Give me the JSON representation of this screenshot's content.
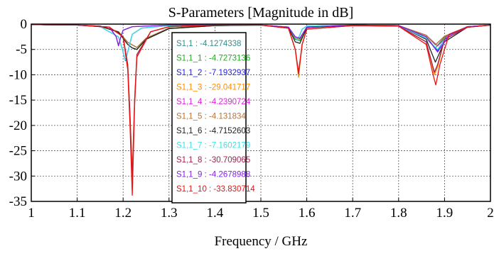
{
  "chart_data": {
    "type": "line",
    "title": "S-Parameters [Magnitude in dB]",
    "xlabel": "Frequency / GHz",
    "ylabel": "",
    "xlim": [
      1,
      2
    ],
    "ylim": [
      -35,
      0
    ],
    "xticks": [
      "1",
      "1.1",
      "1.2",
      "1.3",
      "1.4",
      "1.5",
      "1.6",
      "1.7",
      "1.8",
      "1.9",
      "2"
    ],
    "yticks": [
      "0",
      "-5",
      "-10",
      "-15",
      "-20",
      "-25",
      "-30",
      "-35"
    ],
    "grid": true,
    "legend_position": "top-center",
    "series": [
      {
        "name": "S1,1",
        "label": "S1,1 : -4.1274338",
        "color": "#3a8a8a",
        "x": [
          1.0,
          1.1,
          1.15,
          1.19,
          1.21,
          1.22,
          1.23,
          1.25,
          1.3,
          1.4,
          1.5,
          1.56,
          1.575,
          1.585,
          1.6,
          1.7,
          1.8,
          1.86,
          1.88,
          1.9,
          1.95,
          2.0
        ],
        "y": [
          -0.1,
          -0.2,
          -0.4,
          -1.5,
          -3.6,
          -4.1,
          -4.6,
          -2.8,
          -0.8,
          -0.3,
          -0.2,
          -0.6,
          -2.8,
          -3.0,
          -0.6,
          -0.2,
          -0.3,
          -2.2,
          -4.1,
          -2.4,
          -0.5,
          -0.2
        ]
      },
      {
        "name": "S1,1_1",
        "label": "S1,1_1 : -4.7273136",
        "color": "#22aa22",
        "x": [
          1.0,
          1.1,
          1.15,
          1.19,
          1.21,
          1.22,
          1.23,
          1.25,
          1.3,
          1.4,
          1.5,
          1.56,
          1.575,
          1.585,
          1.6,
          1.7,
          1.8,
          1.86,
          1.88,
          1.9,
          1.95,
          2.0
        ],
        "y": [
          -0.1,
          -0.2,
          -0.4,
          -1.6,
          -4.0,
          -4.7,
          -5.0,
          -3.0,
          -0.9,
          -0.3,
          -0.2,
          -0.6,
          -3.0,
          -3.3,
          -0.6,
          -0.2,
          -0.3,
          -2.5,
          -4.7,
          -2.6,
          -0.5,
          -0.2
        ]
      },
      {
        "name": "S1,1_2",
        "label": "S1,1_2 : -7.1932937",
        "color": "#2222dd",
        "x": [
          1.0,
          1.1,
          1.15,
          1.19,
          1.2,
          1.205,
          1.21,
          1.22,
          1.24,
          1.3,
          1.4,
          1.5,
          1.56,
          1.575,
          1.58,
          1.59,
          1.6,
          1.7,
          1.8,
          1.86,
          1.885,
          1.9,
          1.95,
          2.0
        ],
        "y": [
          -0.1,
          -0.2,
          -0.5,
          -2.5,
          -5.5,
          -7.2,
          -5.5,
          -2.0,
          -0.8,
          -0.3,
          -0.2,
          -0.2,
          -0.6,
          -2.6,
          -3.2,
          -1.0,
          -0.4,
          -0.2,
          -0.3,
          -2.8,
          -5.2,
          -3.0,
          -0.6,
          -0.2
        ]
      },
      {
        "name": "S1,1_3",
        "label": "S1,1_3 : -29.041717",
        "color": "#ff8c00",
        "x": [
          1.0,
          1.1,
          1.17,
          1.2,
          1.21,
          1.215,
          1.22,
          1.225,
          1.23,
          1.26,
          1.3,
          1.4,
          1.5,
          1.56,
          1.575,
          1.582,
          1.59,
          1.6,
          1.7,
          1.8,
          1.86,
          1.878,
          1.885,
          1.9,
          1.95,
          2.0
        ],
        "y": [
          -0.1,
          -0.2,
          -0.6,
          -2.5,
          -8.0,
          -18.0,
          -29.0,
          -15.0,
          -6.0,
          -1.5,
          -0.5,
          -0.2,
          -0.2,
          -0.8,
          -5.0,
          -10.5,
          -4.0,
          -1.0,
          -0.3,
          -0.4,
          -3.5,
          -10.0,
          -8.5,
          -3.0,
          -0.6,
          -0.2
        ]
      },
      {
        "name": "S1,1_4",
        "label": "S1,1_4 : -4.2390724",
        "color": "#e020e0",
        "x": [
          1.0,
          1.1,
          1.17,
          1.185,
          1.19,
          1.195,
          1.2,
          1.22,
          1.3,
          1.4,
          1.5,
          1.56,
          1.575,
          1.585,
          1.6,
          1.7,
          1.8,
          1.86,
          1.885,
          1.91,
          1.95,
          2.0
        ],
        "y": [
          -0.1,
          -0.2,
          -0.6,
          -2.5,
          -4.2,
          -2.5,
          -1.2,
          -0.5,
          -0.2,
          -0.2,
          -0.2,
          -0.6,
          -2.5,
          -2.8,
          -0.6,
          -0.2,
          -0.3,
          -2.2,
          -4.3,
          -2.0,
          -0.5,
          -0.2
        ]
      },
      {
        "name": "S1,1_5",
        "label": "S1,1_5 : -4.131834",
        "color": "#b87333",
        "x": [
          1.0,
          1.1,
          1.15,
          1.19,
          1.21,
          1.22,
          1.23,
          1.25,
          1.3,
          1.4,
          1.5,
          1.56,
          1.575,
          1.585,
          1.6,
          1.7,
          1.8,
          1.86,
          1.88,
          1.9,
          1.95,
          2.0
        ],
        "y": [
          -0.1,
          -0.2,
          -0.4,
          -1.5,
          -3.6,
          -4.1,
          -4.6,
          -2.8,
          -0.8,
          -0.3,
          -0.2,
          -0.6,
          -2.8,
          -3.0,
          -0.6,
          -0.2,
          -0.3,
          -2.2,
          -4.1,
          -2.4,
          -0.5,
          -0.2
        ]
      },
      {
        "name": "S1,1_6",
        "label": "S1,1_6 : -4.7152603",
        "color": "#222222",
        "x": [
          1.0,
          1.1,
          1.15,
          1.19,
          1.21,
          1.22,
          1.23,
          1.25,
          1.3,
          1.4,
          1.5,
          1.56,
          1.575,
          1.585,
          1.6,
          1.7,
          1.8,
          1.86,
          1.88,
          1.9,
          1.95,
          2.0
        ],
        "y": [
          -0.1,
          -0.2,
          -0.4,
          -1.6,
          -4.0,
          -4.7,
          -5.0,
          -3.0,
          -0.9,
          -0.3,
          -0.2,
          -0.7,
          -3.5,
          -3.8,
          -0.7,
          -0.2,
          -0.3,
          -3.0,
          -7.5,
          -3.5,
          -0.6,
          -0.2
        ]
      },
      {
        "name": "S1,1_7",
        "label": "S1,1_7 : -7.1602179",
        "color": "#40e0e8",
        "x": [
          1.0,
          1.1,
          1.15,
          1.19,
          1.2,
          1.205,
          1.21,
          1.22,
          1.24,
          1.3,
          1.4,
          1.5,
          1.56,
          1.575,
          1.58,
          1.59,
          1.6,
          1.7,
          1.8,
          1.86,
          1.885,
          1.9,
          1.95,
          2.0
        ],
        "y": [
          -0.1,
          -0.2,
          -0.5,
          -2.5,
          -5.5,
          -7.1,
          -5.5,
          -2.0,
          -0.8,
          -0.3,
          -0.2,
          -0.2,
          -0.6,
          -2.6,
          -3.2,
          -1.0,
          -0.4,
          -0.2,
          -0.3,
          -2.8,
          -5.0,
          -3.0,
          -0.6,
          -0.2
        ]
      },
      {
        "name": "S1,1_8",
        "label": "S1,1_8 : -30.709065",
        "color": "#a02050",
        "x": [
          1.0,
          1.1,
          1.17,
          1.2,
          1.21,
          1.215,
          1.22,
          1.225,
          1.23,
          1.26,
          1.3,
          1.4,
          1.5,
          1.56,
          1.575,
          1.582,
          1.59,
          1.6,
          1.7,
          1.8,
          1.86,
          1.878,
          1.885,
          1.9,
          1.95,
          2.0
        ],
        "y": [
          -0.1,
          -0.2,
          -0.6,
          -2.5,
          -8.0,
          -18.0,
          -30.7,
          -15.0,
          -6.0,
          -1.5,
          -0.5,
          -0.2,
          -0.2,
          -0.8,
          -5.0,
          -9.8,
          -4.0,
          -1.0,
          -0.3,
          -0.4,
          -3.5,
          -9.5,
          -8.0,
          -3.0,
          -0.6,
          -0.2
        ]
      },
      {
        "name": "S1,1_9",
        "label": "S1,1_9 : -4.2678988",
        "color": "#8020e0",
        "x": [
          1.0,
          1.1,
          1.17,
          1.185,
          1.19,
          1.195,
          1.2,
          1.22,
          1.3,
          1.4,
          1.5,
          1.56,
          1.575,
          1.585,
          1.6,
          1.7,
          1.8,
          1.86,
          1.885,
          1.91,
          1.95,
          2.0
        ],
        "y": [
          -0.1,
          -0.2,
          -0.6,
          -2.5,
          -4.3,
          -2.5,
          -1.2,
          -0.5,
          -0.2,
          -0.2,
          -0.2,
          -0.6,
          -2.5,
          -2.8,
          -0.6,
          -0.2,
          -0.3,
          -2.5,
          -5.5,
          -2.2,
          -0.5,
          -0.2
        ]
      },
      {
        "name": "S1,1_10",
        "label": "S1,1_10 : -33.830714",
        "color": "#ee1111",
        "x": [
          1.0,
          1.1,
          1.17,
          1.2,
          1.21,
          1.215,
          1.22,
          1.225,
          1.23,
          1.26,
          1.3,
          1.4,
          1.5,
          1.56,
          1.575,
          1.582,
          1.59,
          1.6,
          1.7,
          1.8,
          1.86,
          1.875,
          1.881,
          1.89,
          1.91,
          1.95,
          2.0
        ],
        "y": [
          -0.1,
          -0.2,
          -0.6,
          -2.5,
          -9.0,
          -20.0,
          -33.8,
          -16.0,
          -6.5,
          -1.5,
          -0.5,
          -0.2,
          -0.2,
          -0.8,
          -5.0,
          -9.5,
          -4.0,
          -1.0,
          -0.3,
          -0.4,
          -4.0,
          -10.0,
          -12.0,
          -8.0,
          -2.0,
          -0.6,
          -0.2
        ]
      }
    ]
  }
}
